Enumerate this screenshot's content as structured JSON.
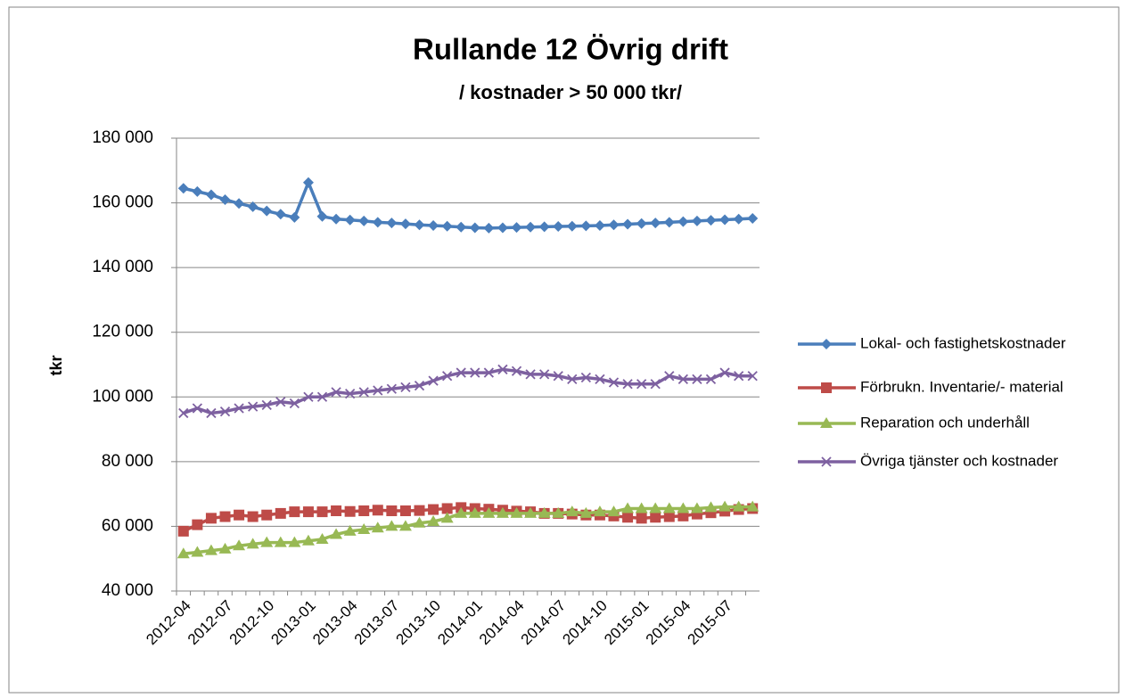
{
  "chart_data": {
    "type": "line",
    "title": "Rullande 12 Övrig drift",
    "subtitle": "/ kostnader > 50 000 tkr/",
    "y_label": "tkr",
    "categories": [
      "2012-04",
      null,
      null,
      "2012-07",
      null,
      null,
      "2012-10",
      null,
      null,
      "2013-01",
      null,
      null,
      "2013-04",
      null,
      null,
      "2013-07",
      null,
      null,
      "2013-10",
      null,
      null,
      "2014-01",
      null,
      null,
      "2014-04",
      null,
      null,
      "2014-07",
      null,
      null,
      "2014-10",
      null,
      null,
      "2015-01",
      null,
      null,
      "2015-04",
      null,
      null,
      "2015-07",
      null,
      null
    ],
    "series": [
      {
        "name": "Lokal- och fastighetskostnader",
        "color": "#4a7ebb",
        "marker": "diamond",
        "values": [
          164500,
          163500,
          162500,
          161000,
          159800,
          158800,
          157500,
          156500,
          155500,
          166300,
          155800,
          155000,
          154700,
          154400,
          154000,
          153800,
          153500,
          153200,
          153000,
          152800,
          152500,
          152300,
          152200,
          152300,
          152400,
          152500,
          152600,
          152700,
          152800,
          152900,
          153000,
          153200,
          153400,
          153600,
          153800,
          154000,
          154200,
          154400,
          154600,
          154800,
          155000,
          155200
        ]
      },
      {
        "name": "Förbrukn. Inventarie/- material",
        "color": "#be4b48",
        "marker": "square",
        "values": [
          58500,
          60500,
          62500,
          63000,
          63500,
          63000,
          63500,
          64000,
          64500,
          64500,
          64500,
          64800,
          64600,
          64800,
          65000,
          64800,
          64800,
          64900,
          65200,
          65500,
          65800,
          65500,
          65300,
          65000,
          64700,
          64500,
          64000,
          64000,
          63800,
          63500,
          63500,
          63200,
          62800,
          62500,
          62800,
          63000,
          63200,
          63800,
          64200,
          64700,
          65200,
          65500
        ]
      },
      {
        "name": "Reparation och underhåll",
        "color": "#98b954",
        "marker": "triangle",
        "values": [
          51500,
          52000,
          52500,
          53000,
          54000,
          54500,
          55000,
          55000,
          55000,
          55500,
          56000,
          57500,
          58500,
          59000,
          59500,
          60000,
          60000,
          61000,
          61500,
          62500,
          64000,
          64000,
          64000,
          64000,
          64000,
          64000,
          64000,
          64000,
          64500,
          64000,
          64500,
          64500,
          65500,
          65500,
          65500,
          65500,
          65500,
          65500,
          65800,
          66000,
          66000,
          66000
        ]
      },
      {
        "name": "Övriga tjänster och kostnader",
        "color": "#7d60a0",
        "marker": "x",
        "values": [
          95000,
          96500,
          95000,
          95500,
          96500,
          97000,
          97500,
          98500,
          98000,
          100000,
          100000,
          101500,
          101000,
          101500,
          102000,
          102500,
          103000,
          103500,
          105000,
          106500,
          107500,
          107500,
          107500,
          108500,
          108000,
          107000,
          107000,
          106500,
          105500,
          106000,
          105500,
          104500,
          104000,
          104000,
          104000,
          106500,
          105500,
          105500,
          105500,
          107500,
          106500,
          106500
        ]
      }
    ],
    "ylim": [
      40000,
      180000
    ],
    "yticks": [
      {
        "value": 40000,
        "label": "40 000"
      },
      {
        "value": 60000,
        "label": "60 000"
      },
      {
        "value": 80000,
        "label": "80 000"
      },
      {
        "value": 100000,
        "label": "100 000"
      },
      {
        "value": 120000,
        "label": "120 000"
      },
      {
        "value": 140000,
        "label": "140 000"
      },
      {
        "value": 160000,
        "label": "160 000"
      },
      {
        "value": 180000,
        "label": "180 000"
      }
    ],
    "grid": true,
    "legend": "right"
  }
}
